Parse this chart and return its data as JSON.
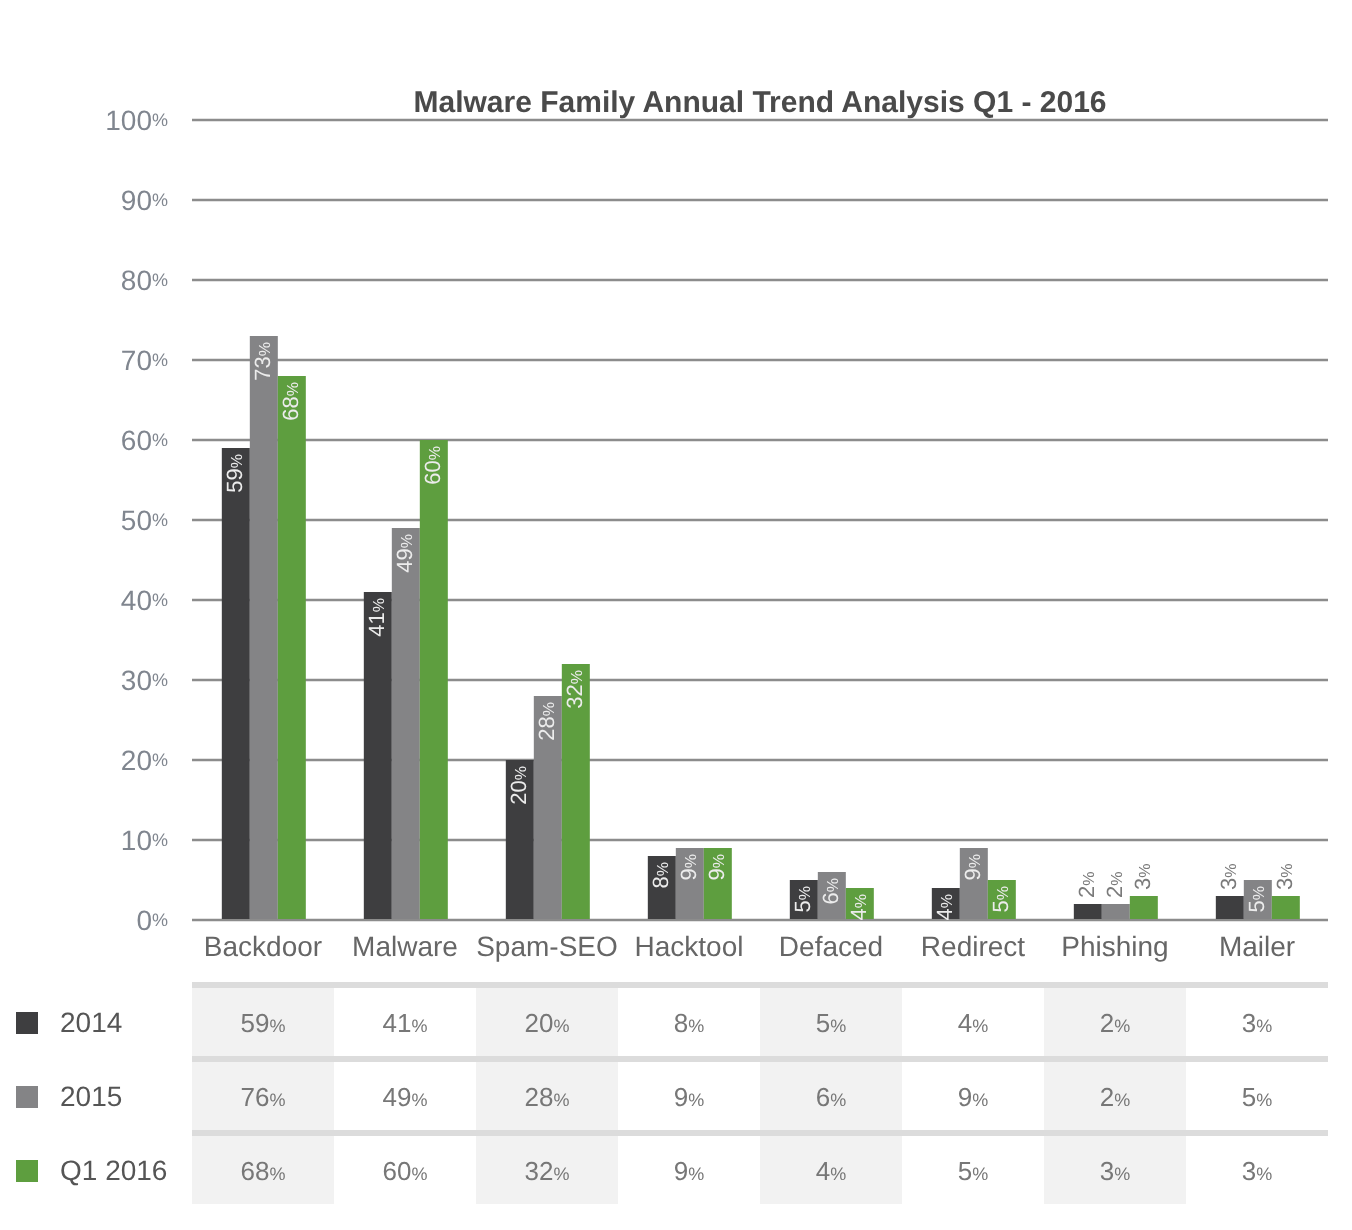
{
  "chart_data": [
    {
      "type": "bar",
      "title": "Malware Family Annual Trend Analysis Q1 - 2016",
      "categories": [
        "Backdoor",
        "Malware",
        "Spam-SEO",
        "Hacktool",
        "Defaced",
        "Redirect",
        "Phishing",
        "Mailer"
      ],
      "series": [
        {
          "name": "2014",
          "color": "#3e3e40",
          "values": [
            59,
            41,
            20,
            8,
            5,
            4,
            2,
            3
          ],
          "value_labels": [
            "59%",
            "41%",
            "20%",
            "8%",
            "5%",
            "4%",
            "2%",
            "3%"
          ]
        },
        {
          "name": "2015",
          "color": "#848486",
          "values": [
            73,
            49,
            28,
            9,
            6,
            9,
            2,
            5
          ],
          "value_labels": [
            "73%",
            "49%",
            "28%",
            "9%",
            "6%",
            "9%",
            "2%",
            "5%"
          ]
        },
        {
          "name": "Q1 2016",
          "color": "#5e9e3f",
          "values": [
            68,
            60,
            32,
            9,
            4,
            5,
            3,
            3
          ],
          "value_labels": [
            "68%",
            "60%",
            "32%",
            "9%",
            "4%",
            "5%",
            "3%",
            "3%"
          ]
        }
      ],
      "ylim": [
        0,
        100
      ],
      "yticks": [
        {
          "value": 0,
          "label": "0%"
        },
        {
          "value": 10,
          "label": "10%"
        },
        {
          "value": 20,
          "label": "20%"
        },
        {
          "value": 30,
          "label": "30%"
        },
        {
          "value": 40,
          "label": "40%"
        },
        {
          "value": 50,
          "label": "50%"
        },
        {
          "value": 60,
          "label": "60%"
        },
        {
          "value": 70,
          "label": "70%"
        },
        {
          "value": 80,
          "label": "80%"
        },
        {
          "value": 90,
          "label": "90%"
        },
        {
          "value": 100,
          "label": "100%"
        }
      ],
      "grid": "y",
      "legend": "bottom left"
    },
    {
      "type": "heatmap",
      "categories": [
        null,
        null,
        null,
        null,
        null,
        null,
        null,
        null
      ],
      "y_categories": [
        null,
        null,
        null
      ],
      "cells": [
        [
          59,
          41,
          20,
          8,
          5,
          4,
          2,
          3
        ],
        [
          76,
          49,
          28,
          9,
          6,
          9,
          2,
          5
        ],
        [
          68,
          60,
          32,
          9,
          4,
          5,
          3,
          3
        ]
      ],
      "cell_labels": [
        [
          "59%",
          "41%",
          "20%",
          "8%",
          "5%",
          "4%",
          "2%",
          "3%"
        ],
        [
          "76%",
          "49%",
          "28%",
          "9%",
          "6%",
          "9%",
          "2%",
          "5%"
        ],
        [
          "68%",
          "60%",
          "32%",
          "9%",
          "4%",
          "5%",
          "3%",
          "3%"
        ]
      ]
    }
  ]
}
